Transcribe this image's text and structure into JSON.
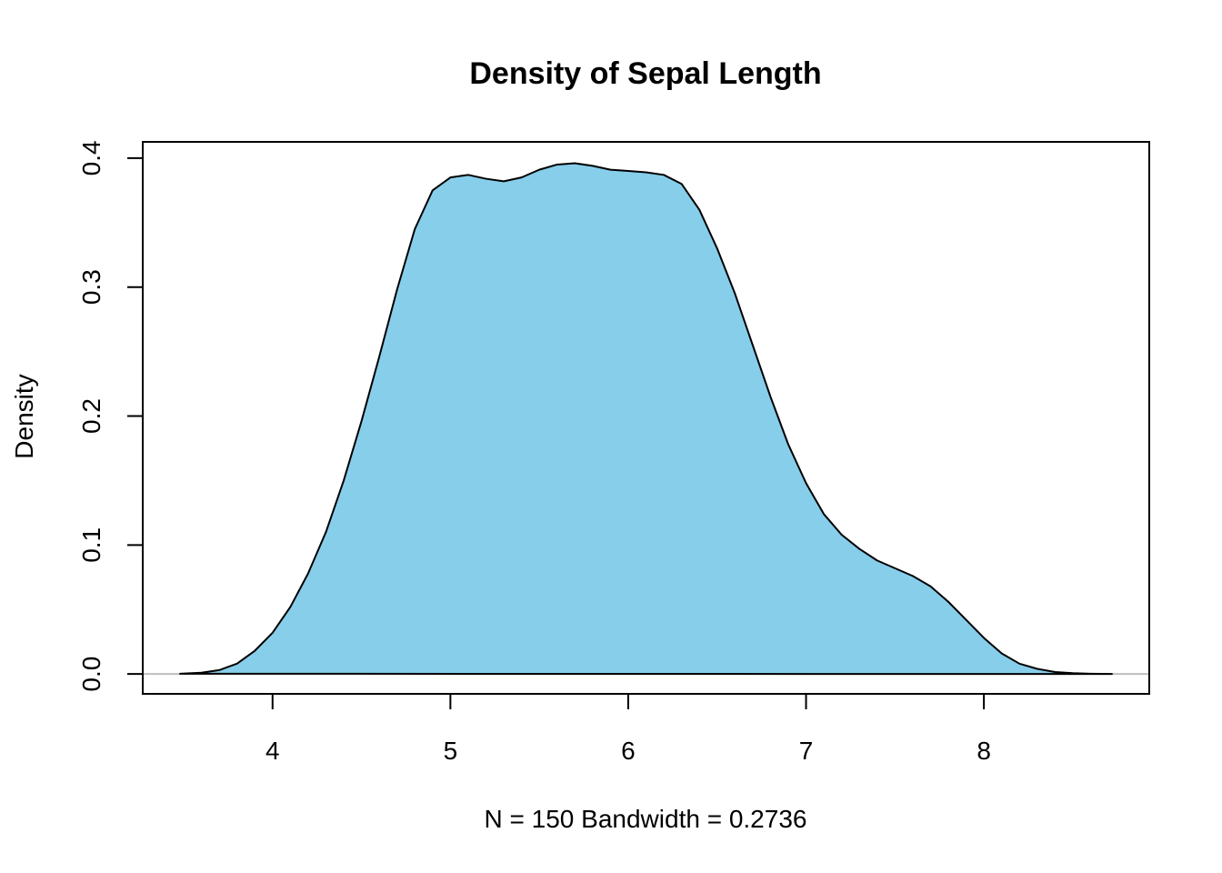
{
  "chart_data": {
    "type": "area",
    "title": "Density of Sepal Length",
    "xlabel": "N = 150   Bandwidth = 0.2736",
    "ylabel": "Density",
    "xlim": [
      3.27,
      8.93
    ],
    "ylim": [
      -0.0154,
      0.4126
    ],
    "x_ticks": [
      "4",
      "5",
      "6",
      "7",
      "8"
    ],
    "y_ticks": [
      "0.0",
      "0.1",
      "0.2",
      "0.3",
      "0.4"
    ],
    "fill_color": "#87CEEB",
    "line_color": "#000000",
    "baseline_color": "#BEBEBE",
    "grid": false,
    "legend": "none",
    "series": [
      {
        "x": [
          3.48,
          3.6,
          3.7,
          3.8,
          3.9,
          4.0,
          4.1,
          4.2,
          4.3,
          4.4,
          4.5,
          4.6,
          4.7,
          4.8,
          4.9,
          5.0,
          5.1,
          5.2,
          5.3,
          5.4,
          5.5,
          5.6,
          5.7,
          5.8,
          5.9,
          6.0,
          6.1,
          6.2,
          6.3,
          6.4,
          6.5,
          6.6,
          6.7,
          6.8,
          6.9,
          7.0,
          7.1,
          7.2,
          7.3,
          7.4,
          7.5,
          7.6,
          7.7,
          7.8,
          7.9,
          8.0,
          8.1,
          8.2,
          8.3,
          8.4,
          8.5,
          8.6,
          8.72
        ],
        "y": [
          0.0002,
          0.001,
          0.003,
          0.008,
          0.018,
          0.032,
          0.052,
          0.078,
          0.11,
          0.15,
          0.196,
          0.246,
          0.298,
          0.345,
          0.375,
          0.385,
          0.387,
          0.384,
          0.382,
          0.385,
          0.391,
          0.395,
          0.396,
          0.394,
          0.391,
          0.39,
          0.389,
          0.387,
          0.38,
          0.36,
          0.33,
          0.295,
          0.255,
          0.215,
          0.178,
          0.148,
          0.124,
          0.108,
          0.097,
          0.088,
          0.082,
          0.076,
          0.068,
          0.056,
          0.042,
          0.028,
          0.016,
          0.008,
          0.004,
          0.0015,
          0.0006,
          0.0002,
          0.0
        ]
      }
    ]
  }
}
